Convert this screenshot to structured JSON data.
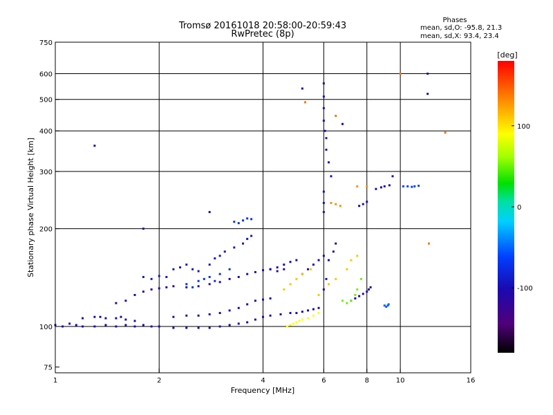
{
  "header": {
    "title_line1": "Tromsø 20161018 20:58:00-20:59:43",
    "title_line2": "RwPretec (8p)"
  },
  "phase_stats": {
    "heading": "Phases",
    "line_o": "mean, sd,O: -95.8, 21.3",
    "line_x": "mean, sd,X:  93.4, 23.4"
  },
  "chart_data": {
    "type": "scatter",
    "xlabel": "Frequency [MHz]",
    "ylabel": "Stationary phase Virtual Height [km]",
    "x_scale": "log",
    "y_scale": "log",
    "xlim": [
      1,
      16
    ],
    "ylim": [
      72,
      750
    ],
    "x_ticks": [
      1,
      2,
      4,
      6,
      8,
      10,
      16
    ],
    "x_tick_labels": [
      "1",
      "2",
      "4",
      "6",
      "8",
      "10",
      "16"
    ],
    "y_ticks": [
      75,
      100,
      200,
      300,
      400,
      500,
      600,
      750
    ],
    "y_tick_labels": [
      "75",
      "100",
      "200",
      "300",
      "400",
      "500",
      "600",
      "750"
    ],
    "x_grid": [
      2,
      4,
      6,
      8,
      10
    ],
    "y_grid": [
      100,
      200,
      300,
      400,
      500,
      600
    ],
    "grid": true,
    "colorbar": {
      "unit_label": "[deg]",
      "range": [
        -180,
        180
      ],
      "ticks": [
        -100,
        0,
        100
      ],
      "tick_labels": [
        "-100",
        "0",
        "100"
      ],
      "colormap": "rainbow (black-purple-blue-cyan-green-yellow-red)"
    },
    "traces": [
      {
        "name": "",
        "phase": -100,
        "points": [
          [
            1.0,
            101
          ],
          [
            1.05,
            100
          ],
          [
            1.1,
            102
          ],
          [
            1.15,
            101
          ],
          [
            1.2,
            100
          ],
          [
            1.3,
            100
          ],
          [
            1.4,
            101
          ],
          [
            1.5,
            100
          ],
          [
            1.6,
            101
          ],
          [
            1.7,
            100
          ],
          [
            1.8,
            101
          ],
          [
            1.9,
            100
          ],
          [
            2.0,
            100
          ],
          [
            2.2,
            99
          ],
          [
            2.4,
            99
          ],
          [
            2.6,
            99
          ],
          [
            2.8,
            99
          ],
          [
            3.0,
            100
          ],
          [
            3.2,
            101
          ],
          [
            3.4,
            102
          ],
          [
            3.6,
            103
          ],
          [
            3.8,
            105
          ],
          [
            4.0,
            107
          ],
          [
            4.2,
            108
          ],
          [
            4.5,
            109
          ],
          [
            4.8,
            110
          ],
          [
            5.0,
            110
          ],
          [
            5.2,
            111
          ],
          [
            5.4,
            112
          ],
          [
            5.6,
            113
          ],
          [
            5.8,
            114
          ]
        ]
      },
      {
        "name": "",
        "phase": -105,
        "points": [
          [
            1.2,
            106
          ],
          [
            1.3,
            107
          ],
          [
            1.35,
            107
          ],
          [
            1.4,
            106
          ],
          [
            1.5,
            106
          ],
          [
            1.55,
            107
          ],
          [
            1.6,
            105
          ],
          [
            1.7,
            104
          ],
          [
            2.2,
            107
          ],
          [
            2.4,
            108
          ],
          [
            2.6,
            108
          ],
          [
            2.8,
            109
          ],
          [
            3.0,
            110
          ],
          [
            3.2,
            112
          ],
          [
            3.4,
            114
          ],
          [
            3.6,
            117
          ],
          [
            3.8,
            120
          ],
          [
            4.0,
            121
          ],
          [
            4.2,
            122
          ]
        ]
      },
      {
        "name": "",
        "phase": -110,
        "points": [
          [
            1.5,
            118
          ],
          [
            1.6,
            120
          ],
          [
            1.7,
            125
          ],
          [
            1.8,
            128
          ],
          [
            1.9,
            130
          ],
          [
            2.0,
            131
          ],
          [
            2.1,
            132
          ],
          [
            2.2,
            133
          ],
          [
            2.4,
            132
          ],
          [
            2.6,
            133
          ],
          [
            2.8,
            135
          ],
          [
            3.0,
            137
          ],
          [
            3.2,
            140
          ],
          [
            3.4,
            142
          ],
          [
            3.6,
            145
          ],
          [
            3.8,
            147
          ],
          [
            4.0,
            149
          ],
          [
            4.2,
            150
          ],
          [
            4.4,
            148
          ],
          [
            4.6,
            150
          ]
        ]
      },
      {
        "name": "",
        "phase": -90,
        "points": [
          [
            1.8,
            142
          ],
          [
            1.9,
            140
          ],
          [
            2.0,
            143
          ],
          [
            2.1,
            142
          ],
          [
            2.2,
            150
          ],
          [
            2.3,
            152
          ],
          [
            2.4,
            155
          ],
          [
            2.5,
            150
          ],
          [
            2.6,
            148
          ],
          [
            2.8,
            155
          ],
          [
            2.9,
            162
          ],
          [
            3.0,
            165
          ],
          [
            3.1,
            170
          ],
          [
            3.3,
            175
          ],
          [
            3.5,
            180
          ],
          [
            3.6,
            186
          ],
          [
            3.7,
            190
          ]
        ]
      },
      {
        "name": "",
        "phase": -70,
        "points": [
          [
            2.4,
            135
          ],
          [
            2.5,
            132
          ],
          [
            2.6,
            138
          ],
          [
            2.7,
            140
          ],
          [
            2.8,
            142
          ],
          [
            2.9,
            138
          ],
          [
            3.0,
            145
          ],
          [
            3.2,
            150
          ],
          [
            3.3,
            210
          ],
          [
            3.4,
            208
          ],
          [
            3.5,
            212
          ],
          [
            3.6,
            215
          ],
          [
            3.7,
            214
          ]
        ]
      },
      {
        "name": "",
        "phase": -100,
        "points": [
          [
            4.2,
            150
          ],
          [
            4.4,
            152
          ],
          [
            4.6,
            155
          ],
          [
            4.8,
            158
          ],
          [
            5.0,
            160
          ],
          [
            5.2,
            145
          ],
          [
            5.4,
            150
          ],
          [
            5.6,
            155
          ],
          [
            5.8,
            160
          ],
          [
            6.0,
            165
          ],
          [
            6.0,
            130
          ],
          [
            6.1,
            140
          ],
          [
            6.2,
            160
          ],
          [
            6.4,
            170
          ],
          [
            6.5,
            180
          ]
        ]
      },
      {
        "name": "",
        "phase": -95,
        "points": [
          [
            6.0,
            560
          ],
          [
            6.0,
            510
          ],
          [
            6.0,
            470
          ],
          [
            6.0,
            430
          ],
          [
            6.05,
            400
          ],
          [
            6.1,
            380
          ],
          [
            6.1,
            350
          ],
          [
            6.2,
            320
          ],
          [
            6.3,
            290
          ],
          [
            6.0,
            260
          ],
          [
            6.0,
            240
          ],
          [
            6.0,
            225
          ]
        ]
      },
      {
        "name": "",
        "phase": -100,
        "points": [
          [
            7.6,
            235
          ],
          [
            7.8,
            238
          ],
          [
            8.0,
            242
          ],
          [
            8.5,
            265
          ],
          [
            8.8,
            268
          ],
          [
            9.0,
            270
          ],
          [
            9.3,
            272
          ]
        ]
      },
      {
        "name": "",
        "phase": -100,
        "points": [
          [
            7.2,
            120
          ],
          [
            7.4,
            122
          ],
          [
            7.6,
            124
          ],
          [
            7.8,
            126
          ],
          [
            8.0,
            128
          ],
          [
            8.1,
            130
          ],
          [
            8.2,
            132
          ]
        ]
      },
      {
        "name": "",
        "phase": -60,
        "points": [
          [
            10.2,
            270
          ],
          [
            10.5,
            270
          ],
          [
            10.8,
            269
          ],
          [
            11.0,
            270
          ],
          [
            11.3,
            271
          ]
        ]
      },
      {
        "name": "",
        "phase": -50,
        "points": [
          [
            9.0,
            116
          ],
          [
            9.1,
            115
          ],
          [
            9.2,
            116
          ],
          [
            9.25,
            117
          ]
        ]
      },
      {
        "name": "",
        "phase": 90,
        "points": [
          [
            4.7,
            100
          ],
          [
            4.8,
            101
          ],
          [
            4.9,
            102
          ],
          [
            5.0,
            103
          ],
          [
            5.1,
            104
          ],
          [
            5.2,
            105
          ],
          [
            5.4,
            106
          ],
          [
            5.6,
            108
          ],
          [
            5.8,
            110
          ]
        ]
      },
      {
        "name": "",
        "phase": 110,
        "points": [
          [
            4.6,
            130
          ],
          [
            4.8,
            135
          ],
          [
            5.0,
            140
          ],
          [
            5.2,
            145
          ],
          [
            5.5,
            150
          ],
          [
            5.8,
            125
          ],
          [
            6.2,
            135
          ],
          [
            6.5,
            140
          ],
          [
            7.0,
            150
          ],
          [
            7.2,
            160
          ],
          [
            7.5,
            165
          ]
        ]
      },
      {
        "name": "",
        "phase": 50,
        "points": [
          [
            6.8,
            120
          ],
          [
            7.0,
            118
          ],
          [
            7.2,
            120
          ],
          [
            7.4,
            125
          ],
          [
            7.5,
            130
          ],
          [
            7.7,
            140
          ]
        ]
      },
      {
        "name": "",
        "phase": 130,
        "points": [
          [
            6.3,
            240
          ],
          [
            6.5,
            238
          ],
          [
            6.7,
            235
          ],
          [
            7.5,
            270
          ],
          [
            8.0,
            270
          ]
        ]
      },
      {
        "name": "",
        "phase": -100,
        "points": [
          [
            1.3,
            360
          ],
          [
            1.8,
            200
          ],
          [
            2.8,
            225
          ],
          [
            5.2,
            540
          ],
          [
            6.8,
            420
          ],
          [
            9.5,
            290
          ],
          [
            12.0,
            520
          ],
          [
            12.0,
            600
          ]
        ]
      },
      {
        "name": "",
        "phase": 140,
        "points": [
          [
            5.3,
            490
          ],
          [
            6.5,
            445
          ],
          [
            12.1,
            180
          ],
          [
            13.5,
            395
          ],
          [
            10.0,
            600
          ]
        ]
      }
    ]
  }
}
